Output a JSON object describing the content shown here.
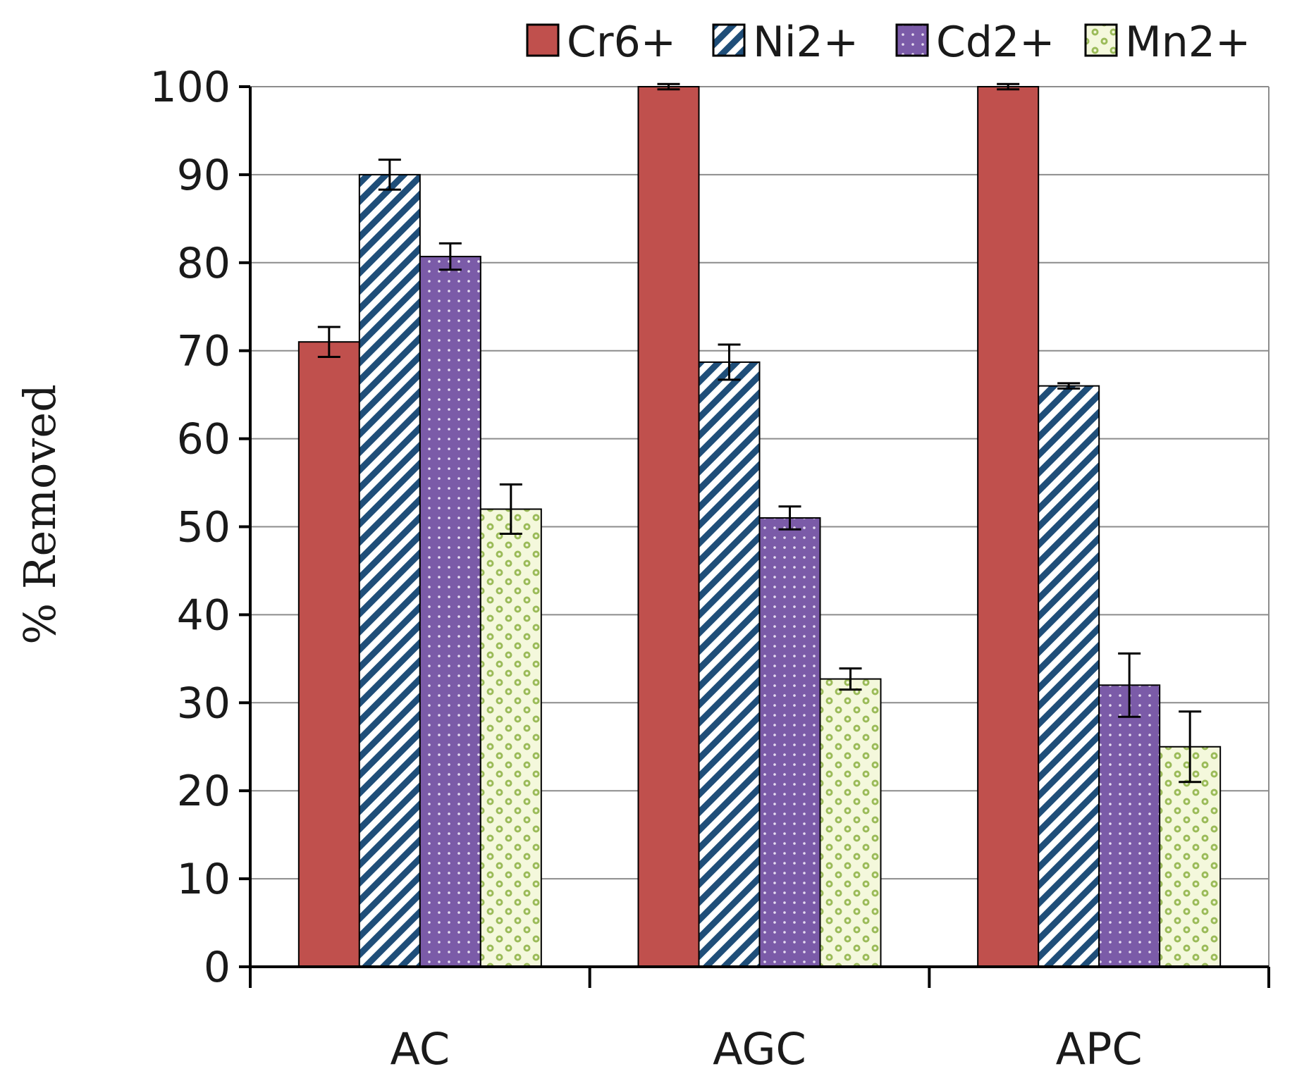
{
  "chart_data": {
    "type": "bar",
    "title": "",
    "xlabel": "",
    "ylabel": "% Removed",
    "ylim": [
      0,
      100
    ],
    "yticks": [
      0,
      10,
      20,
      30,
      40,
      50,
      60,
      70,
      80,
      90,
      100
    ],
    "grid": "horizontal",
    "legend_position": "top-right",
    "categories": [
      "AC",
      "AGC",
      "APC"
    ],
    "series": [
      {
        "name": "Cr6+",
        "values": [
          71,
          100,
          100
        ],
        "errors": [
          1.7,
          0.3,
          0.3
        ],
        "color": "#c0504d",
        "pattern": "solid"
      },
      {
        "name": "Ni2+",
        "values": [
          90,
          68.7,
          66
        ],
        "errors": [
          1.7,
          2.0,
          0.3
        ],
        "color": "#1f4e79",
        "pattern": "diagonal-stripes"
      },
      {
        "name": "Cd2+",
        "values": [
          80.7,
          51,
          32
        ],
        "errors": [
          1.5,
          1.3,
          3.6
        ],
        "color": "#7b5ba8",
        "pattern": "dots"
      },
      {
        "name": "Mn2+",
        "values": [
          52,
          32.7,
          25
        ],
        "errors": [
          2.8,
          1.2,
          4.0
        ],
        "color": "#9bbb59",
        "pattern": "checker"
      }
    ]
  }
}
